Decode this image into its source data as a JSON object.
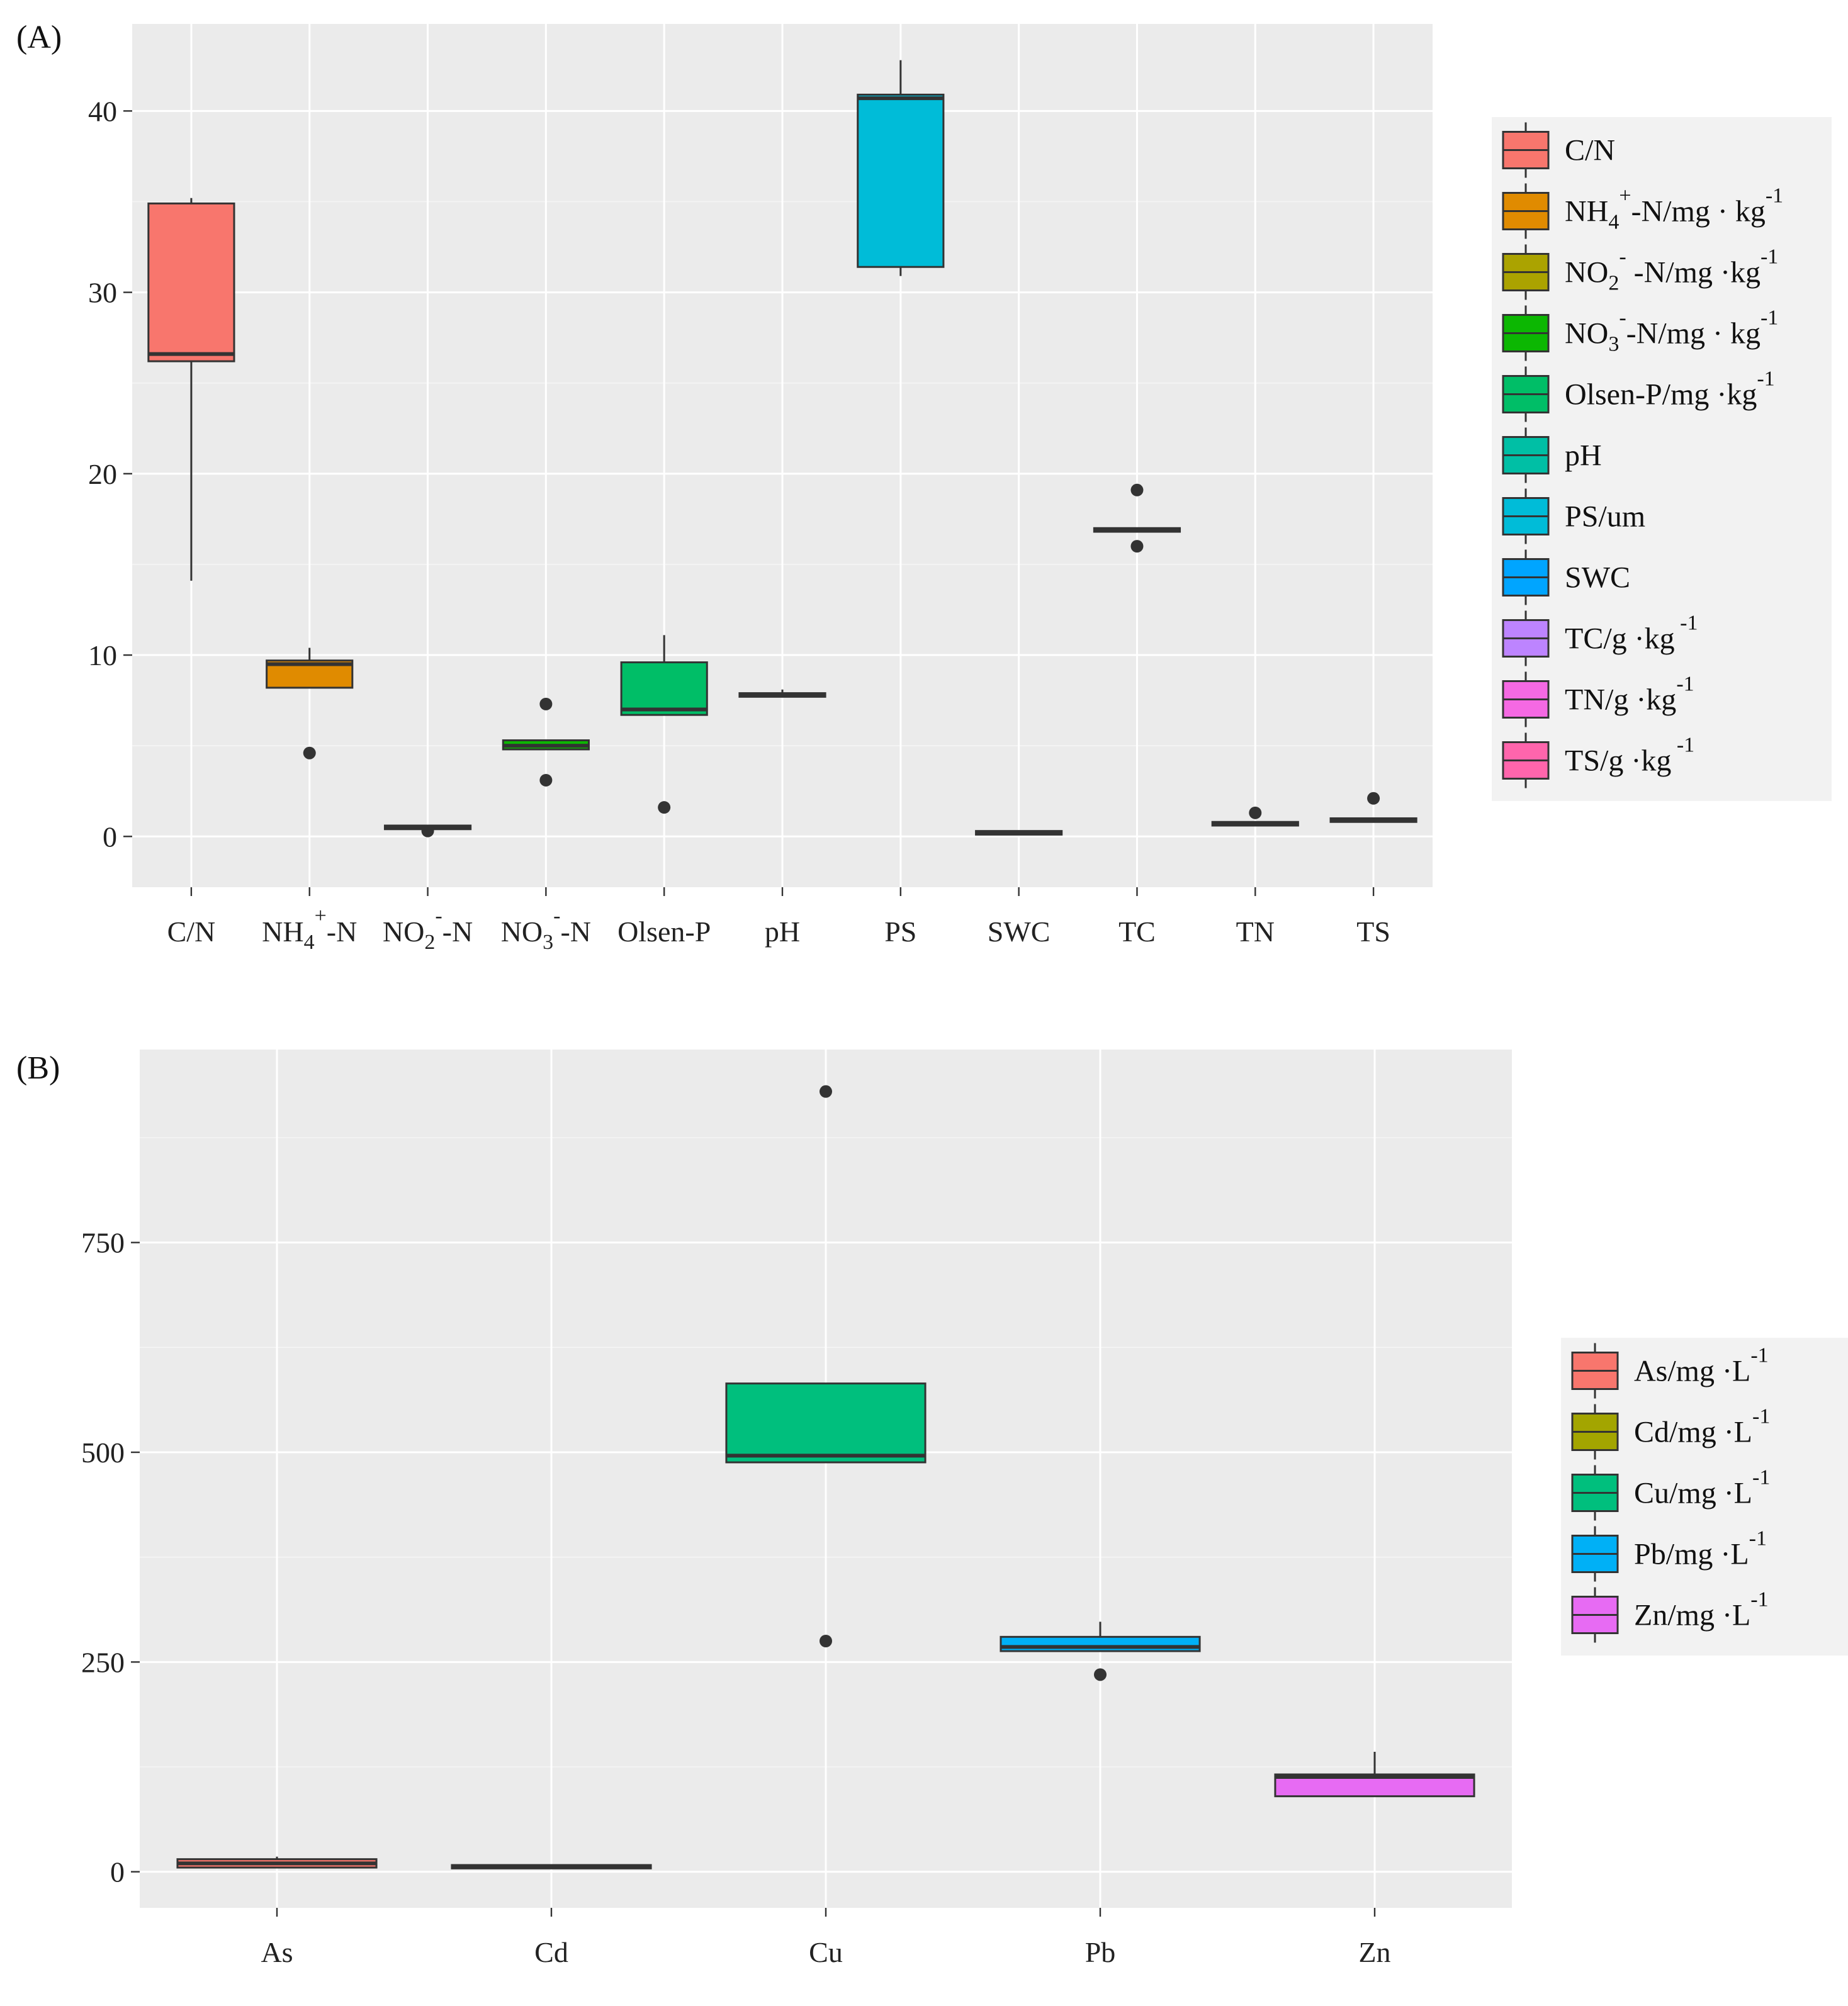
{
  "colors": {
    "CN": "#F8766D",
    "NH4": "#E08B00",
    "NO2": "#ABA300",
    "NO3": "#0CB702",
    "OlsenP": "#00BE67",
    "pH": "#00BFA5",
    "PS": "#00BCD8",
    "SWC": "#00A5FF",
    "TC": "#BD84FF",
    "TN": "#F569E3",
    "TS": "#FF65AC",
    "As": "#F8766D",
    "Cd": "#A3A500",
    "Cu": "#00BF7D",
    "Pb": "#00B0F6",
    "Zn": "#E76BF3"
  },
  "chart_data": [
    {
      "type": "box",
      "panel_label": "(A)",
      "ylim": [
        -2.8,
        44.8
      ],
      "yticks": [
        0,
        10,
        20,
        30,
        40
      ],
      "ytick_labels": [
        "0",
        "10",
        "20",
        "30",
        "40"
      ],
      "categories": [
        {
          "key": "CN",
          "base": "C/N",
          "sub": "",
          "sup": "",
          "tail": "",
          "q1": 26.2,
          "median": 26.6,
          "q3": 34.9,
          "whisker_low": 14.1,
          "whisker_high": 35.2,
          "outliers": []
        },
        {
          "key": "NH4",
          "base": "NH",
          "sub": "4",
          "sup": "+",
          "tail": "-N",
          "q1": 8.2,
          "median": 9.5,
          "q3": 9.7,
          "whisker_low": 8.2,
          "whisker_high": 10.4,
          "outliers": [
            4.6
          ]
        },
        {
          "key": "NO2",
          "base": "NO",
          "sub": "2",
          "sup": "-",
          "tail": "-N",
          "q1": 0.4,
          "median": 0.5,
          "q3": 0.6,
          "whisker_low": 0.4,
          "whisker_high": 0.6,
          "outliers": [
            0.3
          ]
        },
        {
          "key": "NO3",
          "base": "NO",
          "sub": "3",
          "sup": "-",
          "tail": "-N",
          "q1": 4.8,
          "median": 5.0,
          "q3": 5.3,
          "whisker_low": 4.8,
          "whisker_high": 5.3,
          "outliers": [
            7.3,
            3.1
          ]
        },
        {
          "key": "OlsenP",
          "base": "Olsen-P",
          "sub": "",
          "sup": "",
          "tail": "",
          "q1": 6.7,
          "median": 7.0,
          "q3": 9.6,
          "whisker_low": 6.7,
          "whisker_high": 11.1,
          "outliers": [
            1.6
          ]
        },
        {
          "key": "pH",
          "base": "pH",
          "sub": "",
          "sup": "",
          "tail": "",
          "q1": 7.7,
          "median": 7.8,
          "q3": 7.9,
          "whisker_low": 7.7,
          "whisker_high": 8.1,
          "outliers": []
        },
        {
          "key": "PS",
          "base": "PS",
          "sub": "",
          "sup": "",
          "tail": "",
          "q1": 31.4,
          "median": 40.7,
          "q3": 40.9,
          "whisker_low": 30.9,
          "whisker_high": 42.8,
          "outliers": []
        },
        {
          "key": "SWC",
          "base": "SWC",
          "sub": "",
          "sup": "",
          "tail": "",
          "q1": 0.1,
          "median": 0.2,
          "q3": 0.3,
          "whisker_low": 0.1,
          "whisker_high": 0.3,
          "outliers": []
        },
        {
          "key": "TC",
          "base": "TC",
          "sub": "",
          "sup": "",
          "tail": "",
          "q1": 16.8,
          "median": 16.9,
          "q3": 17.0,
          "whisker_low": 16.8,
          "whisker_high": 17.0,
          "outliers": [
            19.1,
            16.0
          ]
        },
        {
          "key": "TN",
          "base": "TN",
          "sub": "",
          "sup": "",
          "tail": "",
          "q1": 0.6,
          "median": 0.7,
          "q3": 0.8,
          "whisker_low": 0.6,
          "whisker_high": 0.8,
          "outliers": [
            1.3
          ]
        },
        {
          "key": "TS",
          "base": "TS",
          "sub": "",
          "sup": "",
          "tail": "",
          "q1": 0.8,
          "median": 0.9,
          "q3": 1.0,
          "whisker_low": 0.8,
          "whisker_high": 1.0,
          "outliers": [
            2.1
          ]
        }
      ],
      "legend": [
        {
          "key": "CN",
          "base": "C/N",
          "sub": "",
          "sup": "",
          "mid": "",
          "sup2": ""
        },
        {
          "key": "NH4",
          "base": "NH",
          "sub": "4",
          "sup": "+",
          "mid": "-N/mg · kg",
          "sup2": "-1"
        },
        {
          "key": "NO2",
          "base": "NO",
          "sub": "2",
          "sup": "-",
          "mid": " -N/mg ·kg",
          "sup2": "-1"
        },
        {
          "key": "NO3",
          "base": "NO",
          "sub": "3",
          "sup": "-",
          "mid": "-N/mg  · kg",
          "sup2": "-1"
        },
        {
          "key": "OlsenP",
          "base": "Olsen-P/mg ·kg",
          "sub": "",
          "sup": "",
          "mid": "",
          "sup2": "-1"
        },
        {
          "key": "pH",
          "base": "pH",
          "sub": "",
          "sup": "",
          "mid": "",
          "sup2": ""
        },
        {
          "key": "PS",
          "base": "PS/um",
          "sub": "",
          "sup": "",
          "mid": "",
          "sup2": ""
        },
        {
          "key": "SWC",
          "base": "SWC",
          "sub": "",
          "sup": "",
          "mid": "",
          "sup2": ""
        },
        {
          "key": "TC",
          "base": "TC/g ·kg",
          "sub": "",
          "sup": "",
          "mid": "",
          "sup2": " -1"
        },
        {
          "key": "TN",
          "base": "TN/g ·kg",
          "sub": "",
          "sup": "",
          "mid": "",
          "sup2": "-1"
        },
        {
          "key": "TS",
          "base": "TS/g ·kg",
          "sub": "",
          "sup": "",
          "mid": "",
          "sup2": " -1"
        }
      ]
    },
    {
      "type": "box",
      "panel_label": "(B)",
      "ylim": [
        -43,
        980
      ],
      "yticks": [
        0,
        250,
        500,
        750
      ],
      "ytick_labels": [
        "0",
        "250",
        "500",
        "750"
      ],
      "categories": [
        {
          "key": "As",
          "base": "As",
          "sub": "",
          "sup": "",
          "tail": "",
          "q1": 5,
          "median": 10,
          "q3": 15,
          "whisker_low": 5,
          "whisker_high": 18,
          "outliers": []
        },
        {
          "key": "Cd",
          "base": "Cd",
          "sub": "",
          "sup": "",
          "tail": "",
          "q1": 4,
          "median": 6,
          "q3": 8,
          "whisker_low": 4,
          "whisker_high": 8,
          "outliers": []
        },
        {
          "key": "Cu",
          "base": "Cu",
          "sub": "",
          "sup": "",
          "tail": "",
          "q1": 488,
          "median": 496,
          "q3": 582,
          "whisker_low": 488,
          "whisker_high": 582,
          "outliers": [
            930,
            275
          ]
        },
        {
          "key": "Pb",
          "base": "Pb",
          "sub": "",
          "sup": "",
          "tail": "",
          "q1": 263,
          "median": 268,
          "q3": 280,
          "whisker_low": 263,
          "whisker_high": 298,
          "outliers": [
            235
          ]
        },
        {
          "key": "Zn",
          "base": "Zn",
          "sub": "",
          "sup": "",
          "tail": "",
          "q1": 90,
          "median": 113,
          "q3": 116,
          "whisker_low": 90,
          "whisker_high": 143,
          "outliers": []
        }
      ],
      "legend": [
        {
          "key": "As",
          "base": "As/mg ·L",
          "sub": "",
          "sup": "",
          "mid": "",
          "sup2": "-1"
        },
        {
          "key": "Cd",
          "base": "Cd/mg ·L",
          "sub": "",
          "sup": "",
          "mid": "",
          "sup2": "-1"
        },
        {
          "key": "Cu",
          "base": "Cu/mg ·L",
          "sub": "",
          "sup": "",
          "mid": "",
          "sup2": "-1"
        },
        {
          "key": "Pb",
          "base": "Pb/mg ·L",
          "sub": "",
          "sup": "",
          "mid": "",
          "sup2": "-1"
        },
        {
          "key": "Zn",
          "base": "Zn/mg ·L",
          "sub": "",
          "sup": "",
          "mid": "",
          "sup2": "-1"
        }
      ]
    }
  ]
}
